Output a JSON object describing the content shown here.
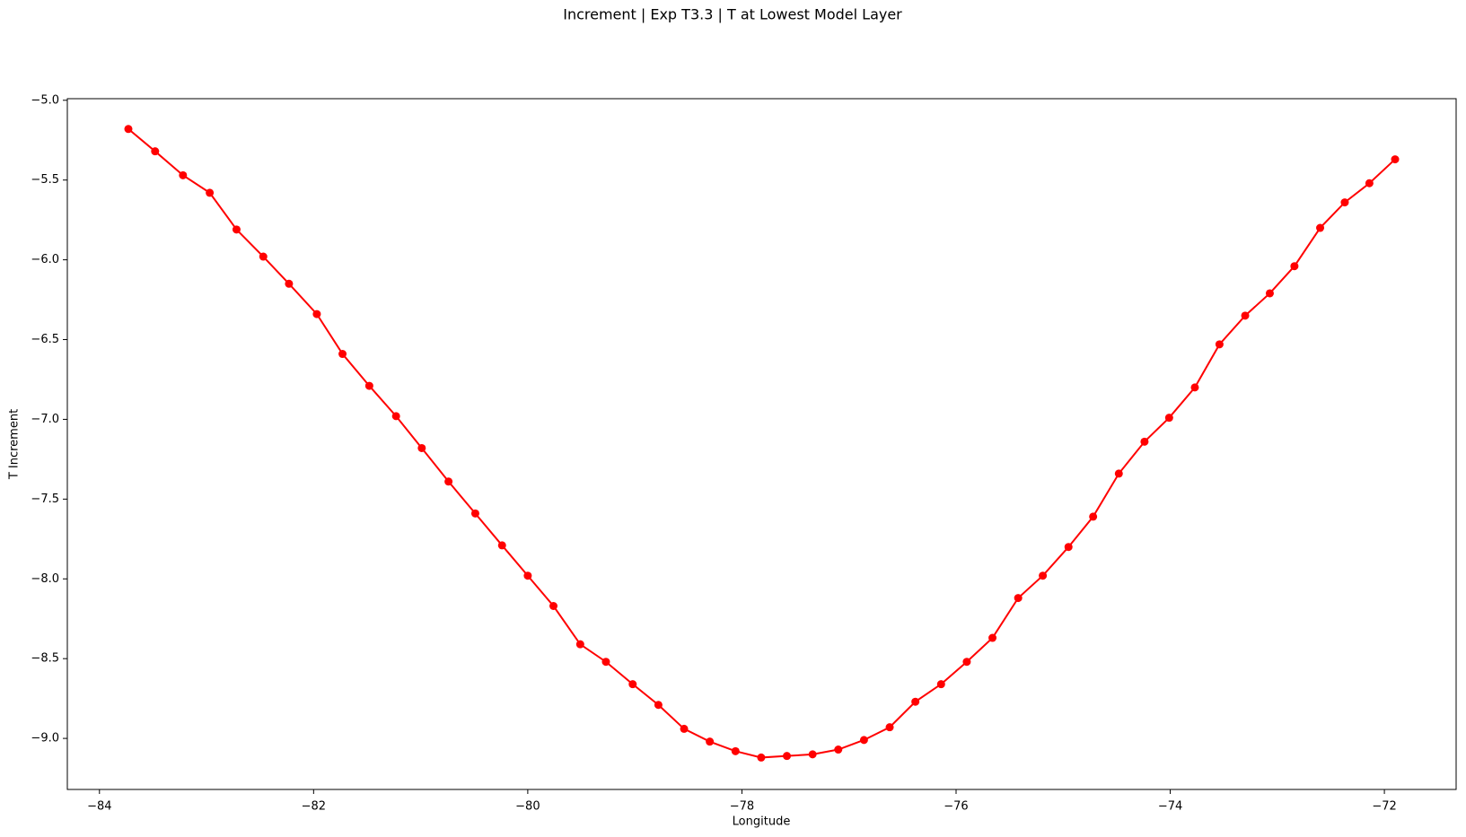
{
  "chart_data": {
    "type": "line",
    "title": "Increment | Exp T3.3 | T at Lowest Model Layer",
    "x_label": "Longitude",
    "y_label": "T Increment",
    "x": [
      -83.73,
      -83.48,
      -83.22,
      -82.97,
      -82.72,
      -82.47,
      -82.23,
      -81.97,
      -81.73,
      -81.48,
      -81.23,
      -80.99,
      -80.74,
      -80.49,
      -80.24,
      -80.0,
      -79.76,
      -79.51,
      -79.27,
      -79.02,
      -78.78,
      -78.54,
      -78.3,
      -78.06,
      -77.82,
      -77.58,
      -77.34,
      -77.1,
      -76.86,
      -76.62,
      -76.38,
      -76.14,
      -75.9,
      -75.66,
      -75.42,
      -75.19,
      -74.95,
      -74.72,
      -74.48,
      -74.24,
      -74.01,
      -73.77,
      -73.54,
      -73.3,
      -73.07,
      -72.84,
      -72.6,
      -72.37,
      -72.14,
      -71.9
    ],
    "series": [
      {
        "name": "T Increment",
        "color": "#ff0000",
        "values": [
          -5.18,
          -5.32,
          -5.47,
          -5.58,
          -5.81,
          -5.98,
          -6.15,
          -6.34,
          -6.59,
          -6.79,
          -6.98,
          -7.18,
          -7.39,
          -7.59,
          -7.79,
          -7.98,
          -8.17,
          -8.41,
          -8.52,
          -8.66,
          -8.79,
          -8.94,
          -9.02,
          -9.08,
          -9.12,
          -9.11,
          -9.1,
          -9.07,
          -9.01,
          -8.93,
          -8.77,
          -8.66,
          -8.52,
          -8.37,
          -8.12,
          -7.98,
          -7.8,
          -7.61,
          -7.34,
          -7.14,
          -6.99,
          -6.8,
          -6.53,
          -6.35,
          -6.21,
          -6.04,
          -5.8,
          -5.64,
          -5.52,
          -5.37
        ]
      }
    ],
    "xlim": [
      -84.3,
      -71.33
    ],
    "ylim": [
      -9.32,
      -4.99
    ],
    "xticks": [
      {
        "value": -84,
        "label": "−84"
      },
      {
        "value": -82,
        "label": "−82"
      },
      {
        "value": -80,
        "label": "−80"
      },
      {
        "value": -78,
        "label": "−78"
      },
      {
        "value": -76,
        "label": "−76"
      },
      {
        "value": -74,
        "label": "−74"
      },
      {
        "value": -72,
        "label": "−72"
      }
    ],
    "yticks": [
      {
        "value": -5,
        "label": "−5.0"
      },
      {
        "value": -5.5,
        "label": "−5.5"
      },
      {
        "value": -6,
        "label": "−6.0"
      },
      {
        "value": -6.5,
        "label": "−6.5"
      },
      {
        "value": -7,
        "label": "−7.0"
      },
      {
        "value": -7.5,
        "label": "−7.5"
      },
      {
        "value": -8,
        "label": "−8.0"
      },
      {
        "value": -8.5,
        "label": "−8.5"
      },
      {
        "value": -9,
        "label": "−9.0"
      }
    ],
    "grid": false
  }
}
